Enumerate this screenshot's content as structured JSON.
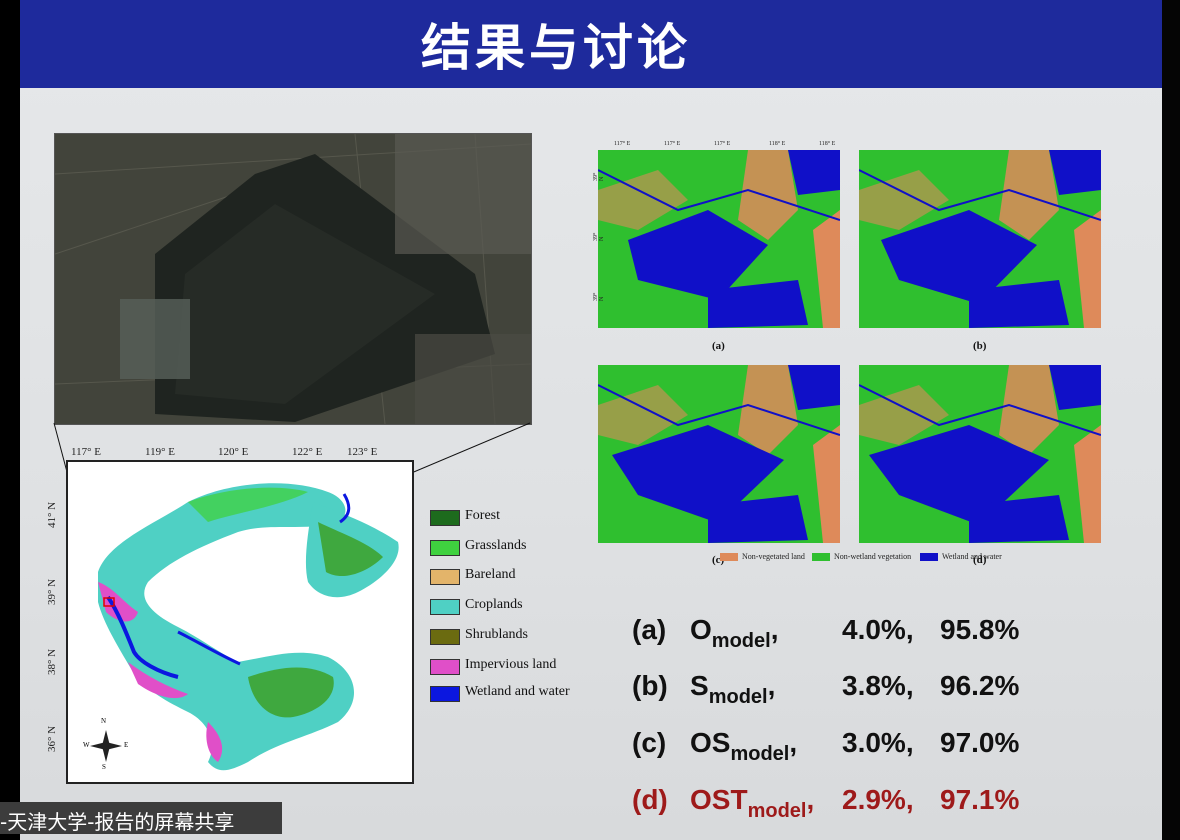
{
  "slide": {
    "title": "结果与讨论"
  },
  "map": {
    "lon_labels": [
      "117° E",
      "119° E",
      "120° E",
      "122° E",
      "123° E"
    ],
    "lat_labels": [
      "41° N",
      "39° N",
      "38° N",
      "36° N"
    ],
    "compass": {
      "n": "N",
      "s": "S",
      "e": "E",
      "w": "W"
    }
  },
  "legend": {
    "items": [
      {
        "label": "Forest",
        "color": "#1d6b1d"
      },
      {
        "label": "Grasslands",
        "color": "#3fd13f"
      },
      {
        "label": "Bareland",
        "color": "#e3b46a"
      },
      {
        "label": "Croplands",
        "color": "#4fd0c4"
      },
      {
        "label": "Shrublands",
        "color": "#6b6b10"
      },
      {
        "label": "Impervious land",
        "color": "#e04fc8"
      },
      {
        "label": "Wetland and water",
        "color": "#0b17e0"
      }
    ]
  },
  "panels": {
    "letters": [
      "(a)",
      "(b)",
      "(c)",
      "(d)"
    ],
    "top_ticks": [
      "117° E",
      "117° E",
      "117° E",
      "118° E",
      "118° E"
    ],
    "side_ticks": [
      "39° N",
      "39° N",
      "39° N"
    ],
    "class_legend": [
      {
        "label": "Non-vegetated land",
        "color": "#de8a5a"
      },
      {
        "label": "Non-wetland vegetation",
        "color": "#2fbf2f"
      },
      {
        "label": "Wetland and water",
        "color": "#1010c8"
      }
    ]
  },
  "results": [
    {
      "tag": "(a)",
      "model": "O",
      "sub": "model",
      "sep": ",",
      "v1": "4.0%,",
      "v2": "95.8%",
      "highlight": false
    },
    {
      "tag": "(b)",
      "model": "S",
      "sub": "model",
      "sep": ",",
      "v1": "3.8%,",
      "v2": "96.2%",
      "highlight": false
    },
    {
      "tag": "(c)",
      "model": "OS",
      "sub": "model",
      "sep": ",",
      "v1": "3.0%,",
      "v2": "97.0%",
      "highlight": false
    },
    {
      "tag": "(d)",
      "model": "OST",
      "sub": "model",
      "sep": ",",
      "v1": "2.9%,",
      "v2": "97.1%",
      "highlight": true
    }
  ],
  "colors": {
    "title_bar": "#1e2a9c",
    "highlight": "#9e1a1a"
  },
  "share_bar": {
    "text": "-天津大学-报告的屏幕共享"
  }
}
